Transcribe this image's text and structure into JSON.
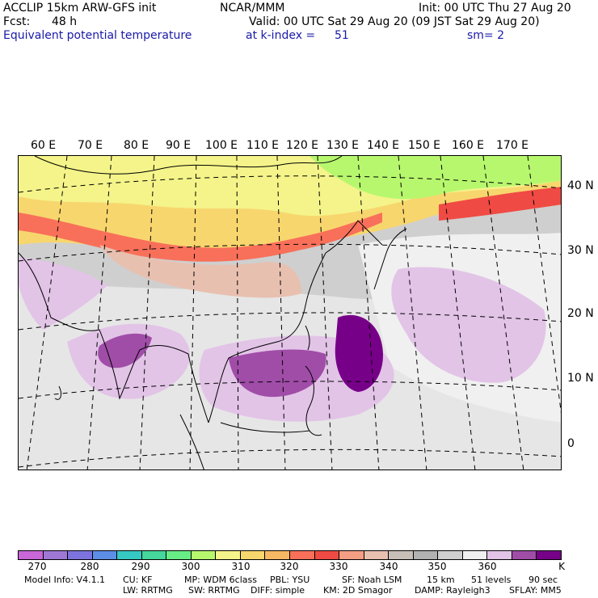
{
  "header": {
    "model": "ACCLIP 15km ARW-GFS init",
    "org": "NCAR/MMM",
    "init": "Init: 00 UTC Thu 27 Aug 20",
    "fcst_label": "Fcst:",
    "fcst_value": "48 h",
    "valid": "Valid: 00 UTC Sat 29 Aug 20 (09 JST Sat 29 Aug 20)",
    "field": "Equivalent potential temperature",
    "level_label": "at k-index =",
    "level_value": "51",
    "smooth": "sm= 2"
  },
  "map": {
    "longitude_labels": [
      "60 E",
      "70 E",
      "80 E",
      "90 E",
      "100 E",
      "110 E",
      "120 E",
      "130 E",
      "140 E",
      "150 E",
      "160 E",
      "170 E"
    ],
    "latitude_labels": [
      "40 N",
      "30 N",
      "20 N",
      "10 N",
      "0"
    ]
  },
  "colorbar": {
    "colors": [
      "#c966d8",
      "#9f78d6",
      "#7d73df",
      "#5c8ee6",
      "#36c9c4",
      "#45d79b",
      "#68ec86",
      "#b7f76e",
      "#f4f48a",
      "#f8d66e",
      "#f7b864",
      "#f8705a",
      "#f04a44",
      "#f49e84",
      "#e8c0b0",
      "#c8bfb8",
      "#b2b2b2",
      "#cfcfcf",
      "#f0f0f0",
      "#e2c4e7",
      "#a04da8",
      "#770088"
    ],
    "labels": [
      "270",
      "280",
      "290",
      "300",
      "310",
      "320",
      "330",
      "340",
      "350",
      "360"
    ],
    "unit": "K"
  },
  "footer": {
    "line1": [
      "Model Info: V4.1.1",
      "CU: KF",
      "MP: WDM 6class",
      "PBL: YSU",
      "SF: Noah LSM",
      "15 km",
      "51 levels",
      "90 sec"
    ],
    "line2": [
      "LW: RRTMG",
      "SW: RRTMG",
      "DIFF: simple",
      "KM: 2D Smagor",
      "DAMP: Rayleigh3",
      "SFLAY: MM5"
    ]
  }
}
